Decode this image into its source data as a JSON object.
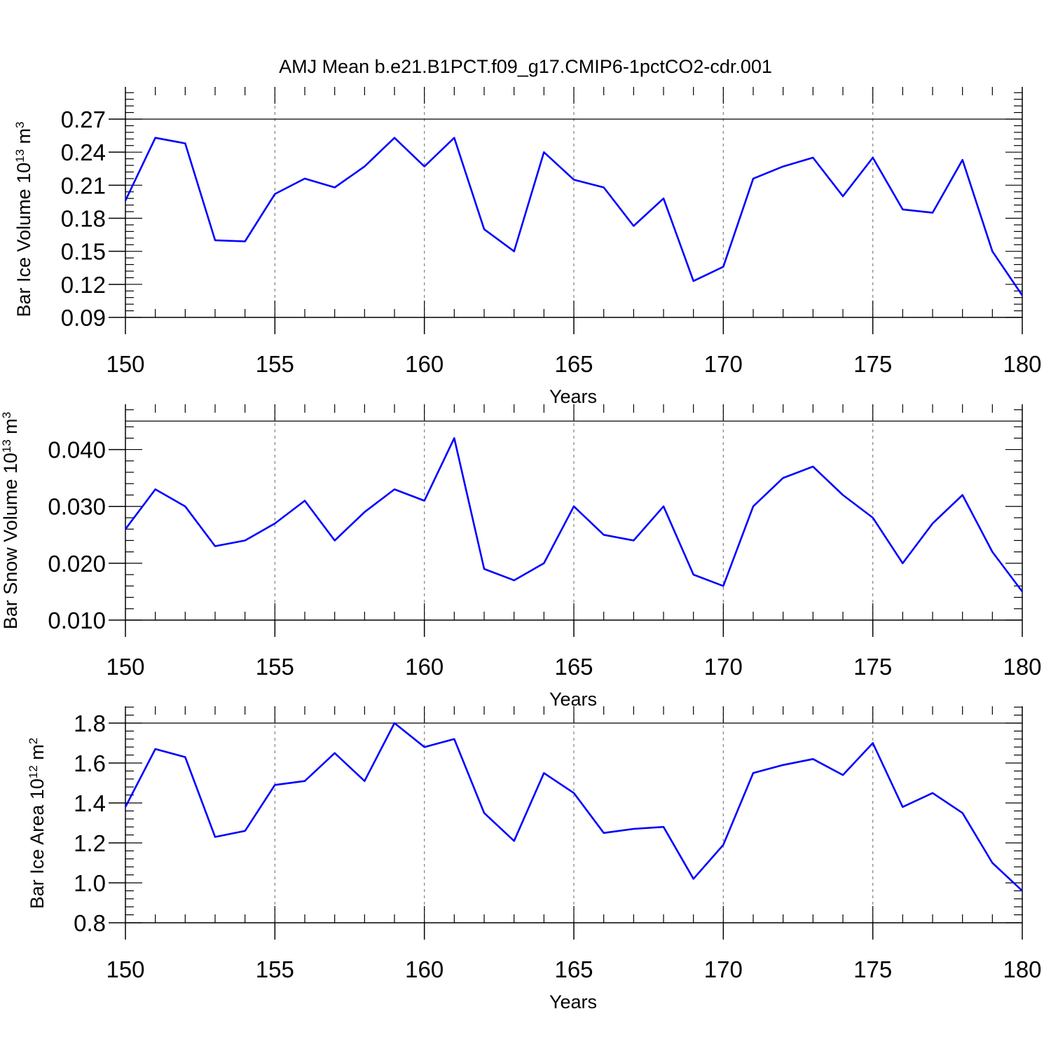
{
  "title": "AMJ Mean b.e21.B1PCT.f09_g17.CMIP6-1pctCO2-cdr.001",
  "colors": {
    "line": "#0000ff",
    "axis": "#000000",
    "grid": "#808080"
  },
  "chart_data": [
    {
      "type": "line",
      "xlabel": "Years",
      "ylabel": {
        "text": "Bar Ice Volume 10",
        "exp": "13",
        "unit": " m",
        "unit_exp": "3"
      },
      "xlim": [
        150,
        180
      ],
      "ylim": [
        0.09,
        0.27
      ],
      "xticks": [
        "150",
        "155",
        "160",
        "165",
        "170",
        "175",
        "180"
      ],
      "yticks": [
        "0.09",
        "0.12",
        "0.15",
        "0.18",
        "0.21",
        "0.24",
        "0.27"
      ],
      "grid": "vertical dashed at major x ticks",
      "x": [
        150,
        151,
        152,
        153,
        154,
        155,
        156,
        157,
        158,
        159,
        160,
        161,
        162,
        163,
        164,
        165,
        166,
        167,
        168,
        169,
        170,
        171,
        172,
        173,
        174,
        175,
        176,
        177,
        178,
        179,
        180
      ],
      "values": [
        0.196,
        0.253,
        0.248,
        0.16,
        0.159,
        0.202,
        0.216,
        0.208,
        0.227,
        0.253,
        0.227,
        0.253,
        0.17,
        0.15,
        0.24,
        0.215,
        0.208,
        0.173,
        0.198,
        0.123,
        0.136,
        0.216,
        0.227,
        0.235,
        0.2,
        0.235,
        0.188,
        0.185,
        0.233,
        0.15,
        0.11
      ]
    },
    {
      "type": "line",
      "xlabel": "Years",
      "ylabel": {
        "text": "Bar Snow Volume 10",
        "exp": "13",
        "unit": " m",
        "unit_exp": "3"
      },
      "xlim": [
        150,
        180
      ],
      "ylim": [
        0.01,
        0.045
      ],
      "xticks": [
        "150",
        "155",
        "160",
        "165",
        "170",
        "175",
        "180"
      ],
      "yticks": [
        "0.010",
        "0.020",
        "0.030",
        "0.040"
      ],
      "grid": "vertical dashed at major x ticks",
      "x": [
        150,
        151,
        152,
        153,
        154,
        155,
        156,
        157,
        158,
        159,
        160,
        161,
        162,
        163,
        164,
        165,
        166,
        167,
        168,
        169,
        170,
        171,
        172,
        173,
        174,
        175,
        176,
        177,
        178,
        179,
        180
      ],
      "values": [
        0.026,
        0.033,
        0.03,
        0.023,
        0.024,
        0.027,
        0.031,
        0.024,
        0.029,
        0.033,
        0.031,
        0.042,
        0.019,
        0.017,
        0.02,
        0.03,
        0.025,
        0.024,
        0.03,
        0.018,
        0.016,
        0.03,
        0.035,
        0.037,
        0.032,
        0.028,
        0.02,
        0.027,
        0.032,
        0.022,
        0.015
      ]
    },
    {
      "type": "line",
      "xlabel": "Years",
      "ylabel": {
        "text": "Bar Ice Area 10",
        "exp": "12",
        "unit": " m",
        "unit_exp": "2"
      },
      "xlim": [
        150,
        180
      ],
      "ylim": [
        0.8,
        1.8
      ],
      "xticks": [
        "150",
        "155",
        "160",
        "165",
        "170",
        "175",
        "180"
      ],
      "yticks": [
        "0.8",
        "1.0",
        "1.2",
        "1.4",
        "1.6",
        "1.8"
      ],
      "grid": "vertical dashed at major x ticks",
      "x": [
        150,
        151,
        152,
        153,
        154,
        155,
        156,
        157,
        158,
        159,
        160,
        161,
        162,
        163,
        164,
        165,
        166,
        167,
        168,
        169,
        170,
        171,
        172,
        173,
        174,
        175,
        176,
        177,
        178,
        179,
        180
      ],
      "values": [
        1.38,
        1.67,
        1.63,
        1.23,
        1.26,
        1.49,
        1.51,
        1.65,
        1.51,
        1.8,
        1.68,
        1.72,
        1.35,
        1.21,
        1.55,
        1.45,
        1.25,
        1.27,
        1.28,
        1.02,
        1.19,
        1.55,
        1.59,
        1.62,
        1.54,
        1.7,
        1.38,
        1.45,
        1.35,
        1.1,
        0.96
      ]
    }
  ]
}
